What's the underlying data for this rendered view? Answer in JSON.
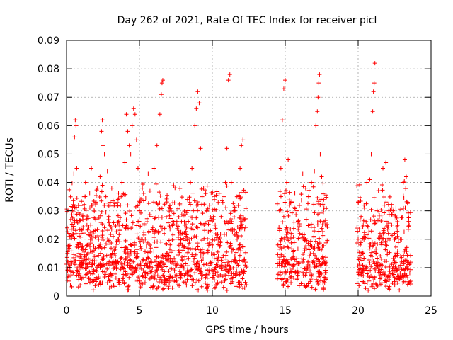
{
  "chart_data": {
    "type": "scatter",
    "title": "Day 262 of 2021, Rate Of TEC Index for receiver picl",
    "xlabel": "GPS time / hours",
    "ylabel": "ROTI / TECUs",
    "xlim": [
      0,
      25
    ],
    "ylim": [
      0,
      0.09
    ],
    "x_ticks": [
      {
        "value": 0,
        "label": "0"
      },
      {
        "value": 5,
        "label": "5"
      },
      {
        "value": 10,
        "label": "10"
      },
      {
        "value": 15,
        "label": "15"
      },
      {
        "value": 20,
        "label": "20"
      },
      {
        "value": 25,
        "label": "25"
      }
    ],
    "y_ticks": [
      {
        "value": 0,
        "label": "0"
      },
      {
        "value": 0.01,
        "label": "0.01"
      },
      {
        "value": 0.02,
        "label": "0.02"
      },
      {
        "value": 0.03,
        "label": "0.03"
      },
      {
        "value": 0.04,
        "label": "0.04"
      },
      {
        "value": 0.05,
        "label": "0.05"
      },
      {
        "value": 0.06,
        "label": "0.06"
      },
      {
        "value": 0.07,
        "label": "0.07"
      },
      {
        "value": 0.08,
        "label": "0.08"
      },
      {
        "value": 0.09,
        "label": "0.09"
      }
    ],
    "grid": true,
    "marker": "plus",
    "color": "#ff0000",
    "series": [
      {
        "name": "ROTI",
        "points": [
          [
            0.1,
            0.012
          ],
          [
            0.2,
            0.021
          ],
          [
            0.3,
            0.009
          ],
          [
            0.4,
            0.03
          ],
          [
            0.5,
            0.043
          ],
          [
            0.55,
            0.056
          ],
          [
            0.6,
            0.062
          ],
          [
            0.65,
            0.06
          ],
          [
            0.7,
            0.045
          ],
          [
            0.8,
            0.018
          ],
          [
            0.9,
            0.011
          ],
          [
            1.0,
            0.022
          ],
          [
            1.1,
            0.028
          ],
          [
            1.2,
            0.035
          ],
          [
            1.3,
            0.04
          ],
          [
            1.4,
            0.025
          ],
          [
            1.5,
            0.013
          ],
          [
            1.6,
            0.031
          ],
          [
            1.7,
            0.045
          ],
          [
            1.8,
            0.032
          ],
          [
            1.9,
            0.014
          ],
          [
            2.0,
            0.027
          ],
          [
            2.1,
            0.038
          ],
          [
            2.2,
            0.02
          ],
          [
            2.3,
            0.042
          ],
          [
            2.4,
            0.058
          ],
          [
            2.45,
            0.062
          ],
          [
            2.5,
            0.053
          ],
          [
            2.6,
            0.05
          ],
          [
            2.7,
            0.035
          ],
          [
            2.8,
            0.044
          ],
          [
            2.9,
            0.028
          ],
          [
            3.0,
            0.033
          ],
          [
            3.1,
            0.038
          ],
          [
            3.2,
            0.021
          ],
          [
            3.3,
            0.015
          ],
          [
            3.4,
            0.012
          ],
          [
            3.5,
            0.02
          ],
          [
            3.6,
            0.025
          ],
          [
            3.7,
            0.032
          ],
          [
            3.8,
            0.04
          ],
          [
            3.9,
            0.036
          ],
          [
            4.0,
            0.047
          ],
          [
            4.1,
            0.064
          ],
          [
            4.2,
            0.058
          ],
          [
            4.3,
            0.053
          ],
          [
            4.4,
            0.05
          ],
          [
            4.5,
            0.06
          ],
          [
            4.6,
            0.066
          ],
          [
            4.7,
            0.064
          ],
          [
            4.8,
            0.055
          ],
          [
            4.9,
            0.045
          ],
          [
            5.0,
            0.03
          ],
          [
            5.2,
            0.038
          ],
          [
            5.4,
            0.02
          ],
          [
            5.6,
            0.043
          ],
          [
            5.8,
            0.028
          ],
          [
            6.0,
            0.045
          ],
          [
            6.2,
            0.053
          ],
          [
            6.4,
            0.064
          ],
          [
            6.5,
            0.071
          ],
          [
            6.55,
            0.075
          ],
          [
            6.6,
            0.076
          ],
          [
            6.7,
            0.022
          ],
          [
            6.9,
            0.015
          ],
          [
            7.1,
            0.018
          ],
          [
            7.3,
            0.012
          ],
          [
            7.5,
            0.02
          ],
          [
            7.7,
            0.016
          ],
          [
            7.9,
            0.013
          ],
          [
            8.1,
            0.025
          ],
          [
            8.3,
            0.034
          ],
          [
            8.5,
            0.04
          ],
          [
            8.6,
            0.045
          ],
          [
            8.7,
            0.03
          ],
          [
            8.8,
            0.06
          ],
          [
            8.9,
            0.066
          ],
          [
            9.0,
            0.072
          ],
          [
            9.1,
            0.068
          ],
          [
            9.2,
            0.052
          ],
          [
            9.3,
            0.035
          ],
          [
            9.4,
            0.038
          ],
          [
            9.6,
            0.03
          ],
          [
            9.8,
            0.032
          ],
          [
            10.0,
            0.018
          ],
          [
            10.2,
            0.025
          ],
          [
            10.4,
            0.02
          ],
          [
            10.6,
            0.028
          ],
          [
            10.8,
            0.035
          ],
          [
            10.9,
            0.04
          ],
          [
            11.0,
            0.052
          ],
          [
            11.1,
            0.076
          ],
          [
            11.2,
            0.078
          ],
          [
            11.3,
            0.04
          ],
          [
            11.5,
            0.03
          ],
          [
            11.7,
            0.02
          ],
          [
            11.9,
            0.045
          ],
          [
            12.0,
            0.053
          ],
          [
            12.1,
            0.055
          ],
          [
            12.2,
            0.027
          ],
          [
            14.5,
            0.018
          ],
          [
            14.6,
            0.03
          ],
          [
            14.7,
            0.045
          ],
          [
            14.8,
            0.062
          ],
          [
            14.9,
            0.073
          ],
          [
            15.0,
            0.076
          ],
          [
            15.1,
            0.04
          ],
          [
            15.2,
            0.048
          ],
          [
            15.3,
            0.032
          ],
          [
            15.4,
            0.022
          ],
          [
            15.6,
            0.026
          ],
          [
            15.8,
            0.03
          ],
          [
            16.0,
            0.022
          ],
          [
            16.2,
            0.043
          ],
          [
            16.4,
            0.038
          ],
          [
            16.6,
            0.035
          ],
          [
            16.8,
            0.04
          ],
          [
            17.0,
            0.044
          ],
          [
            17.1,
            0.06
          ],
          [
            17.2,
            0.065
          ],
          [
            17.25,
            0.07
          ],
          [
            17.3,
            0.075
          ],
          [
            17.35,
            0.078
          ],
          [
            17.4,
            0.05
          ],
          [
            17.5,
            0.042
          ],
          [
            17.6,
            0.036
          ],
          [
            17.8,
            0.025
          ],
          [
            20.0,
            0.02
          ],
          [
            20.2,
            0.028
          ],
          [
            20.4,
            0.032
          ],
          [
            20.6,
            0.04
          ],
          [
            20.8,
            0.041
          ],
          [
            20.9,
            0.05
          ],
          [
            21.0,
            0.065
          ],
          [
            21.05,
            0.072
          ],
          [
            21.1,
            0.075
          ],
          [
            21.15,
            0.082
          ],
          [
            21.3,
            0.03
          ],
          [
            21.5,
            0.022
          ],
          [
            21.7,
            0.045
          ],
          [
            21.9,
            0.047
          ],
          [
            22.1,
            0.03
          ],
          [
            22.3,
            0.025
          ],
          [
            22.5,
            0.02
          ],
          [
            22.7,
            0.015
          ],
          [
            22.9,
            0.02
          ],
          [
            23.1,
            0.04
          ],
          [
            23.2,
            0.048
          ],
          [
            23.3,
            0.042
          ],
          [
            23.4,
            0.033
          ],
          [
            23.5,
            0.025
          ]
        ]
      }
    ],
    "background_bands": [
      {
        "from": 0.0,
        "to": 12.35,
        "floor": 0.002,
        "base": 0.011,
        "density": 95
      },
      {
        "from": 14.45,
        "to": 17.9,
        "floor": 0.002,
        "base": 0.012,
        "density": 95
      },
      {
        "from": 19.9,
        "to": 23.6,
        "floor": 0.002,
        "base": 0.011,
        "density": 95
      }
    ]
  }
}
